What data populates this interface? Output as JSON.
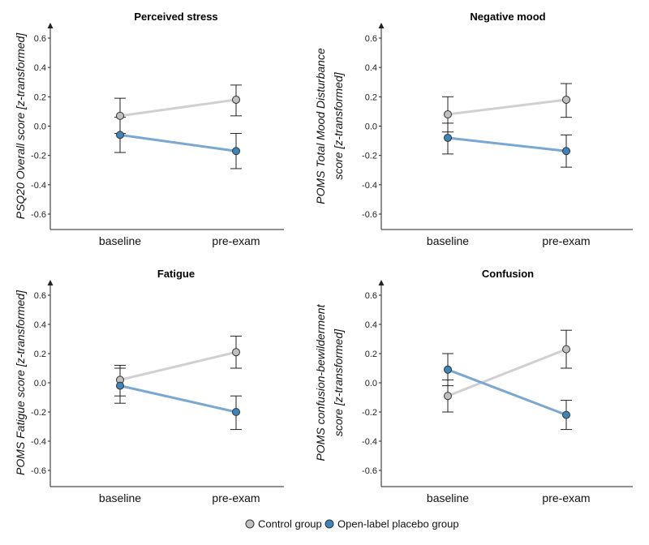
{
  "legend": {
    "items": [
      {
        "label": "Control group",
        "color": "#c0c0c0"
      },
      {
        "label": "Open-label placebo group",
        "color": "#3d84bb"
      }
    ]
  },
  "chart_data": [
    {
      "type": "line",
      "title": "Perceived stress",
      "ylabel_lines": [
        "PSQ20 Overall score [z-transformed]"
      ],
      "categories": [
        "baseline",
        "pre-exam"
      ],
      "ylim": [
        -0.7,
        0.7
      ],
      "yticks": [
        "0.6",
        "0.4",
        "0.2",
        "0.0",
        "-0.2",
        "-0.4",
        "-0.6"
      ],
      "series": [
        {
          "name": "Control group",
          "values": [
            0.07,
            0.18
          ],
          "err_low": [
            -0.05,
            0.07
          ],
          "err_high": [
            0.19,
            0.28
          ]
        },
        {
          "name": "Open-label placebo group",
          "values": [
            -0.06,
            -0.17
          ],
          "err_low": [
            -0.18,
            -0.29
          ],
          "err_high": [
            0.06,
            -0.05
          ]
        }
      ]
    },
    {
      "type": "line",
      "title": "Negative mood",
      "ylabel_lines": [
        "POMS Total Mood Disturbance",
        "score [z-transformed]"
      ],
      "categories": [
        "baseline",
        "pre-exam"
      ],
      "ylim": [
        -0.7,
        0.7
      ],
      "yticks": [
        "0.6",
        "0.4",
        "0.2",
        "0.0",
        "-0.2",
        "-0.4",
        "-0.6"
      ],
      "series": [
        {
          "name": "Control group",
          "values": [
            0.08,
            0.18
          ],
          "err_low": [
            -0.04,
            0.06
          ],
          "err_high": [
            0.2,
            0.29
          ]
        },
        {
          "name": "Open-label placebo group",
          "values": [
            -0.08,
            -0.17
          ],
          "err_low": [
            -0.19,
            -0.28
          ],
          "err_high": [
            0.02,
            -0.06
          ]
        }
      ]
    },
    {
      "type": "line",
      "title": "Fatigue",
      "ylabel_lines": [
        "POMS Fatigue score [z-transformed]"
      ],
      "categories": [
        "baseline",
        "pre-exam"
      ],
      "ylim": [
        -0.7,
        0.7
      ],
      "yticks": [
        "0.6",
        "0.4",
        "0.2",
        "0.0",
        "-0.2",
        "-0.4",
        "-0.6"
      ],
      "series": [
        {
          "name": "Control group",
          "values": [
            0.02,
            0.21
          ],
          "err_low": [
            -0.09,
            0.1
          ],
          "err_high": [
            0.12,
            0.32
          ]
        },
        {
          "name": "Open-label placebo group",
          "values": [
            -0.02,
            -0.2
          ],
          "err_low": [
            -0.14,
            -0.32
          ],
          "err_high": [
            0.1,
            -0.09
          ]
        }
      ]
    },
    {
      "type": "line",
      "title": "Confusion",
      "ylabel_lines": [
        "POMS confusion-bewilderment",
        "score [z-transformed]"
      ],
      "categories": [
        "baseline",
        "pre-exam"
      ],
      "ylim": [
        -0.7,
        0.7
      ],
      "yticks": [
        "0.6",
        "0.4",
        "0.2",
        "0.0",
        "-0.2",
        "-0.4",
        "-0.6"
      ],
      "series": [
        {
          "name": "Control group",
          "values": [
            -0.09,
            0.23
          ],
          "err_low": [
            -0.2,
            0.1
          ],
          "err_high": [
            0.02,
            0.36
          ]
        },
        {
          "name": "Open-label placebo group",
          "values": [
            0.09,
            -0.22
          ],
          "err_low": [
            -0.02,
            -0.32
          ],
          "err_high": [
            0.2,
            -0.12
          ]
        }
      ]
    }
  ]
}
